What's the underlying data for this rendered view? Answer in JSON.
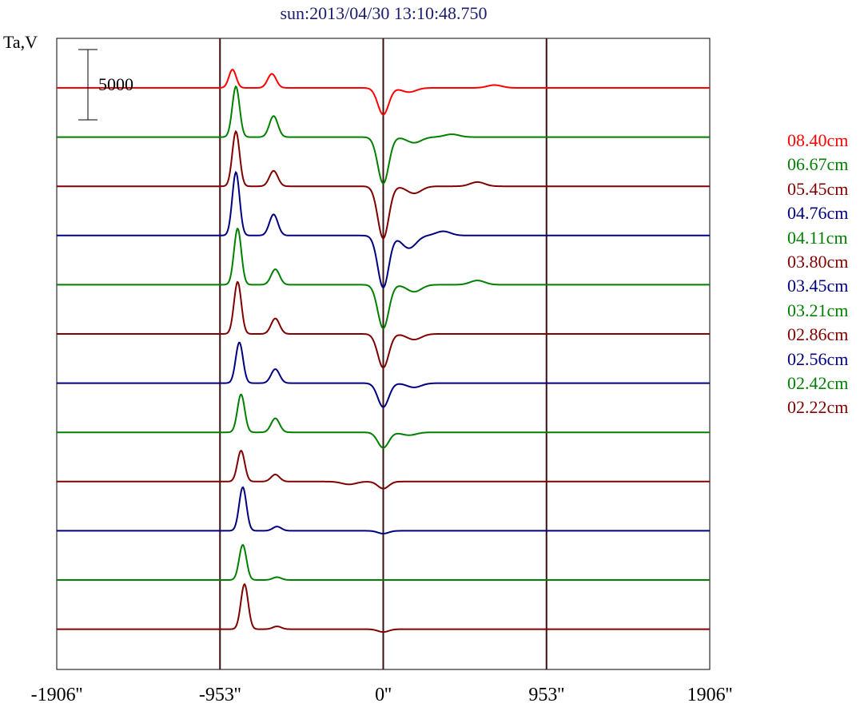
{
  "title": "sun:2013/04/30 13:10:48.750",
  "ylabel": "Ta,V",
  "scale_bar_label": "5000",
  "chart_data": {
    "type": "line",
    "title": "sun:2013/04/30 13:10:48.750",
    "ylabel": "Ta,V",
    "xlabel": "",
    "x_ticks": [
      "-1906''",
      "-953''",
      "0''",
      "953''",
      "1906''"
    ],
    "xlim": [
      -1906,
      1906
    ],
    "vertical_lines_at": [
      -953,
      0,
      953
    ],
    "scale_bar": 5000,
    "legend_placement": "right",
    "series": [
      {
        "name": "08.40cm",
        "color": "#ff0000",
        "peaks": [
          [
            -880,
            1300
          ],
          [
            -650,
            1000
          ]
        ],
        "dips": [
          [
            0,
            -1900
          ]
        ],
        "bumps": [
          [
            150,
            -300
          ],
          [
            650,
            200
          ]
        ]
      },
      {
        "name": "06.67cm",
        "color": "#008000",
        "peaks": [
          [
            -860,
            3600
          ],
          [
            -640,
            1500
          ]
        ],
        "dips": [
          [
            0,
            -3300
          ]
        ],
        "bumps": [
          [
            180,
            -400
          ],
          [
            400,
            200
          ]
        ]
      },
      {
        "name": "05.45cm",
        "color": "#800000",
        "peaks": [
          [
            -860,
            3900
          ],
          [
            -640,
            1100
          ]
        ],
        "dips": [
          [
            0,
            -3700
          ]
        ],
        "bumps": [
          [
            180,
            -500
          ],
          [
            550,
            300
          ]
        ]
      },
      {
        "name": "04.76cm",
        "color": "#000080",
        "peaks": [
          [
            -860,
            4500
          ],
          [
            -640,
            1500
          ]
        ],
        "dips": [
          [
            0,
            -3700
          ]
        ],
        "bumps": [
          [
            150,
            -900
          ],
          [
            350,
            300
          ]
        ]
      },
      {
        "name": "04.11cm",
        "color": "#008000",
        "peaks": [
          [
            -850,
            4000
          ],
          [
            -630,
            1100
          ]
        ],
        "dips": [
          [
            0,
            -3100
          ]
        ],
        "bumps": [
          [
            180,
            -500
          ],
          [
            550,
            300
          ]
        ]
      },
      {
        "name": "03.80cm",
        "color": "#800000",
        "peaks": [
          [
            -850,
            3700
          ],
          [
            -630,
            1100
          ]
        ],
        "dips": [
          [
            0,
            -2400
          ]
        ],
        "bumps": [
          [
            180,
            -400
          ]
        ]
      },
      {
        "name": "03.45cm",
        "color": "#000080",
        "peaks": [
          [
            -840,
            2900
          ],
          [
            -630,
            1000
          ]
        ],
        "dips": [
          [
            0,
            -1700
          ]
        ],
        "bumps": [
          [
            180,
            -300
          ]
        ]
      },
      {
        "name": "03.21cm",
        "color": "#008000",
        "peaks": [
          [
            -830,
            2700
          ],
          [
            -630,
            1000
          ]
        ],
        "dips": [
          [
            0,
            -1100
          ]
        ],
        "bumps": [
          [
            150,
            -200
          ]
        ]
      },
      {
        "name": "02.86cm",
        "color": "#800000",
        "peaks": [
          [
            -830,
            2200
          ],
          [
            -630,
            500
          ]
        ],
        "dips": [
          [
            0,
            -500
          ]
        ],
        "bumps": [
          [
            -200,
            -200
          ]
        ]
      },
      {
        "name": "02.56cm",
        "color": "#000080",
        "peaks": [
          [
            -820,
            3100
          ],
          [
            -620,
            300
          ]
        ],
        "dips": [
          [
            0,
            -200
          ]
        ],
        "bumps": []
      },
      {
        "name": "02.42cm",
        "color": "#008000",
        "peaks": [
          [
            -820,
            2500
          ],
          [
            -620,
            200
          ]
        ],
        "dips": [],
        "bumps": []
      },
      {
        "name": "02.22cm",
        "color": "#800000",
        "peaks": [
          [
            -810,
            3200
          ],
          [
            -620,
            200
          ]
        ],
        "dips": [
          [
            0,
            -200
          ]
        ],
        "bumps": []
      }
    ]
  }
}
